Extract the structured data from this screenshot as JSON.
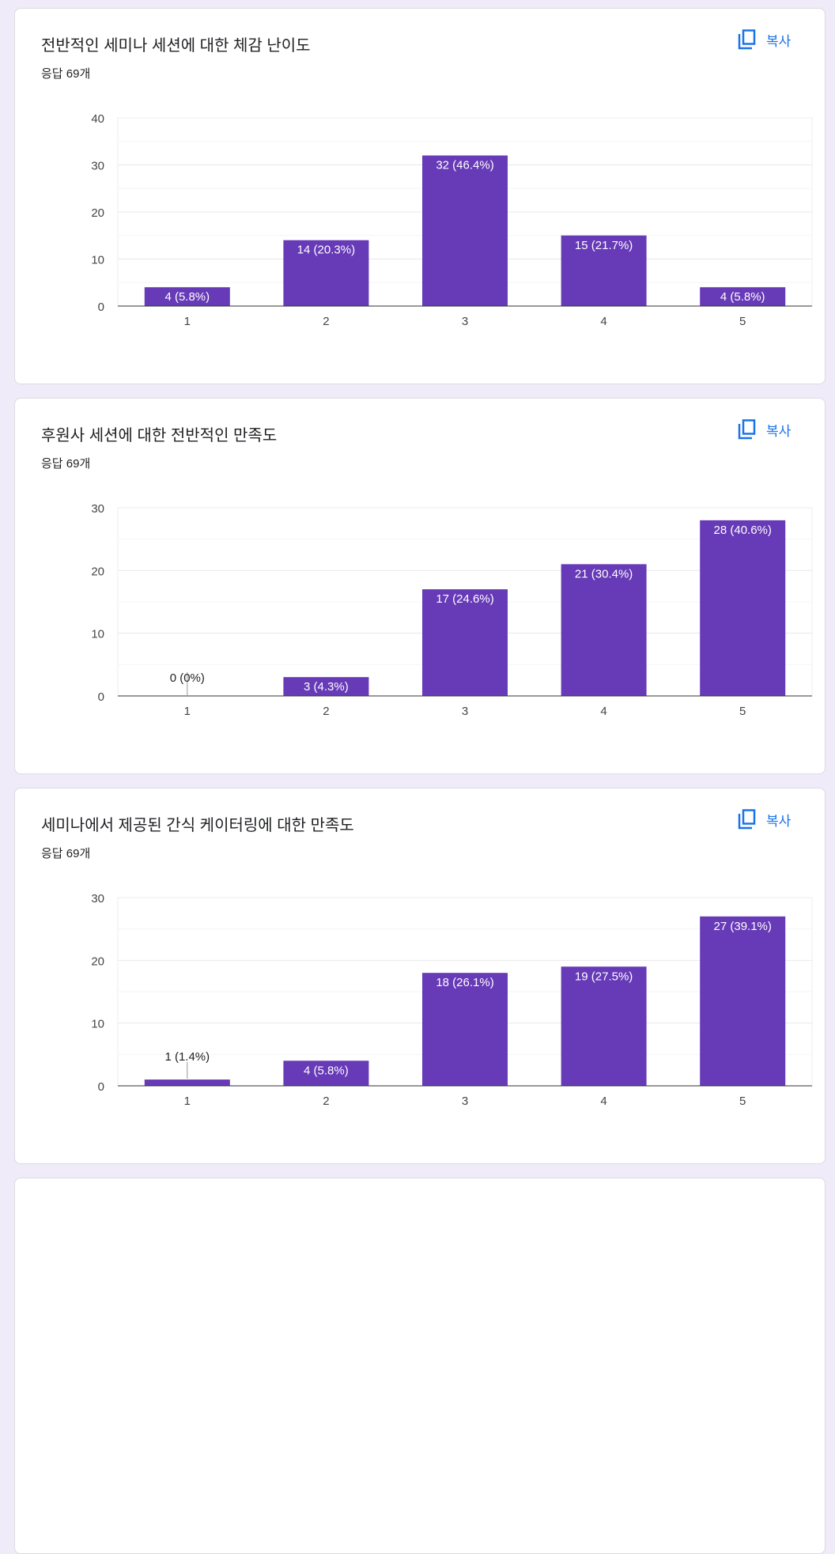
{
  "copy_label": "복사",
  "colors": {
    "bar": "#673ab7",
    "accent": "#1a73e8"
  },
  "chart_data": [
    {
      "type": "bar",
      "title": "전반적인 세미나 세션에 대한 체감 난이도",
      "responses": "응답 69개",
      "categories": [
        "1",
        "2",
        "3",
        "4",
        "5"
      ],
      "values": [
        4,
        14,
        32,
        15,
        4
      ],
      "labels": [
        "4 (5.8%)",
        "14 (20.3%)",
        "32 (46.4%)",
        "15 (21.7%)",
        "4 (5.8%)"
      ],
      "ylim": [
        0,
        40
      ],
      "yticks": [
        0,
        10,
        20,
        30,
        40
      ]
    },
    {
      "type": "bar",
      "title": "후원사 세션에 대한 전반적인 만족도",
      "responses": "응답 69개",
      "categories": [
        "1",
        "2",
        "3",
        "4",
        "5"
      ],
      "values": [
        0,
        3,
        17,
        21,
        28
      ],
      "labels": [
        "0 (0%)",
        "3 (4.3%)",
        "17 (24.6%)",
        "21 (30.4%)",
        "28 (40.6%)"
      ],
      "ylim": [
        0,
        30
      ],
      "yticks": [
        0,
        10,
        20,
        30
      ]
    },
    {
      "type": "bar",
      "title": "세미나에서 제공된 간식 케이터링에 대한 만족도",
      "responses": "응답 69개",
      "categories": [
        "1",
        "2",
        "3",
        "4",
        "5"
      ],
      "values": [
        1,
        4,
        18,
        19,
        27
      ],
      "labels": [
        "1 (1.4%)",
        "4 (5.8%)",
        "18 (26.1%)",
        "19 (27.5%)",
        "27 (39.1%)"
      ],
      "ylim": [
        0,
        30
      ],
      "yticks": [
        0,
        10,
        20,
        30
      ]
    }
  ]
}
